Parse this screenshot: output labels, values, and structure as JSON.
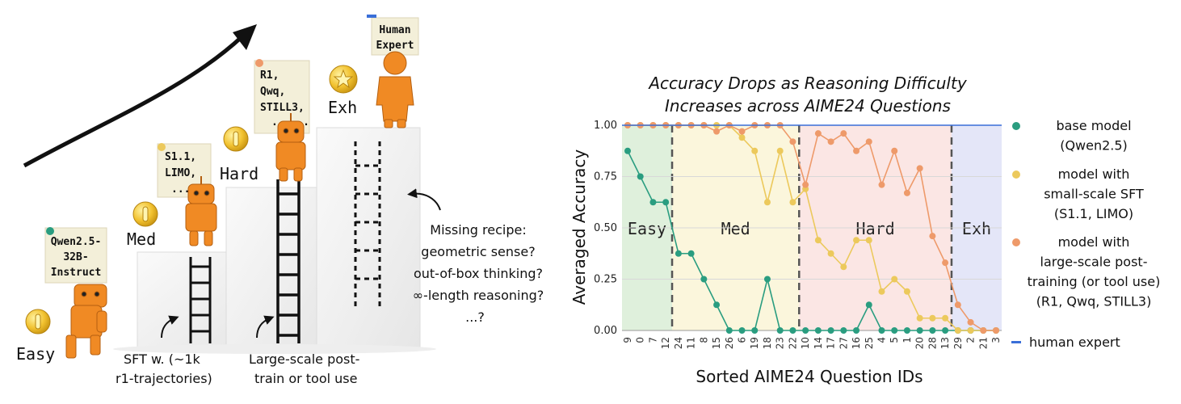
{
  "illustration": {
    "notes": {
      "qwen": [
        "Qwen2.5-",
        "32B-",
        "Instruct"
      ],
      "s1": [
        "S1.1,",
        "LIMO,",
        "......"
      ],
      "r1": [
        "R1,",
        "Qwq,",
        "STILL3,",
        "......"
      ],
      "human": [
        "Human",
        "Expert"
      ]
    },
    "levels": {
      "easy": "Easy",
      "med": "Med",
      "hard": "Hard",
      "exh": "Exh"
    },
    "captions": {
      "sft": [
        "SFT w. (~1k",
        "r1-trajectories)"
      ],
      "large": [
        "Large-scale post-",
        "train or tool use"
      ],
      "missing": [
        "Missing recipe:",
        "geometric sense?",
        "out-of-box thinking?",
        "∞-length reasoning?",
        "...?"
      ]
    },
    "colors": {
      "coin": "#f2c230",
      "robot": "#f08a24",
      "note": "#f3efd9",
      "ladder": "#111111"
    }
  },
  "chart_data": {
    "type": "line",
    "title": [
      "Accuracy Drops as Reasoning Difficulty",
      "Increases across AIME24 Questions"
    ],
    "xlabel": "Sorted AIME24 Question IDs",
    "ylabel": "Averaged Accuracy",
    "x_categories": [
      "9",
      "0",
      "7",
      "12",
      "24",
      "11",
      "8",
      "15",
      "26",
      "6",
      "19",
      "18",
      "23",
      "22",
      "10",
      "14",
      "17",
      "27",
      "16",
      "25",
      "4",
      "5",
      "1",
      "20",
      "28",
      "13",
      "29",
      "2",
      "21",
      "3"
    ],
    "ylim": [
      0,
      1
    ],
    "yticks": [
      "0.00",
      "0.25",
      "0.50",
      "0.75",
      "1.00"
    ],
    "regions": [
      {
        "label": "Easy",
        "start": 0,
        "end": 3,
        "color": "#dff0dc"
      },
      {
        "label": "Med",
        "start": 4,
        "end": 13,
        "color": "#fbf6dc"
      },
      {
        "label": "Hard",
        "start": 14,
        "end": 25,
        "color": "#fbe6e4"
      },
      {
        "label": "Exh",
        "start": 26,
        "end": 29,
        "color": "#e4e6f8"
      }
    ],
    "series": [
      {
        "name": "base model (Qwen2.5)",
        "color": "#2a9d80",
        "values": [
          0.875,
          0.75,
          0.625,
          0.625,
          0.375,
          0.375,
          0.25,
          0.125,
          0,
          0,
          0,
          0.25,
          0,
          0,
          0,
          0,
          0,
          0,
          0,
          0.125,
          0,
          0,
          0,
          0,
          0,
          0,
          0,
          0,
          0,
          0
        ]
      },
      {
        "name": "model with small-scale SFT (S1.1, LIMO)",
        "color": "#ecc95c",
        "values": [
          1,
          1,
          1,
          1,
          1,
          1,
          1,
          1,
          1,
          0.94,
          0.875,
          0.625,
          0.875,
          0.625,
          0.69,
          0.44,
          0.375,
          0.31,
          0.44,
          0.44,
          0.19,
          0.25,
          0.19,
          0.06,
          0.06,
          0.06,
          0,
          0,
          0,
          0
        ]
      },
      {
        "name": "model with large-scale post-training (or tool use) (R1, Qwq, STILL3)",
        "color": "#ee9a6a",
        "values": [
          1,
          1,
          1,
          1,
          1,
          1,
          1,
          0.97,
          1,
          0.97,
          1,
          1,
          1,
          0.92,
          0.71,
          0.96,
          0.92,
          0.96,
          0.875,
          0.92,
          0.71,
          0.875,
          0.67,
          0.79,
          0.46,
          0.33,
          0.125,
          0.04,
          0,
          0
        ]
      },
      {
        "name": "human expert",
        "color": "#3a6fd8",
        "values": [
          1,
          1,
          1,
          1,
          1,
          1,
          1,
          1,
          1,
          1,
          1,
          1,
          1,
          1,
          1,
          1,
          1,
          1,
          1,
          1,
          1,
          1,
          1,
          1,
          1,
          1,
          1,
          1,
          1,
          1
        ]
      }
    ],
    "legend": [
      {
        "lines": [
          "base model",
          "(Qwen2.5)"
        ],
        "color": "#2a9d80",
        "marker": "dot"
      },
      {
        "lines": [
          "model with",
          "small-scale SFT",
          "(S1.1, LIMO)"
        ],
        "color": "#ecc95c",
        "marker": "dot"
      },
      {
        "lines": [
          "model with",
          "large-scale post-",
          "training (or tool use)",
          "(R1, Qwq, STILL3)"
        ],
        "color": "#ee9a6a",
        "marker": "dot"
      },
      {
        "lines": [
          "human expert"
        ],
        "color": "#3a6fd8",
        "marker": "dash"
      }
    ],
    "legend_position": "right"
  }
}
